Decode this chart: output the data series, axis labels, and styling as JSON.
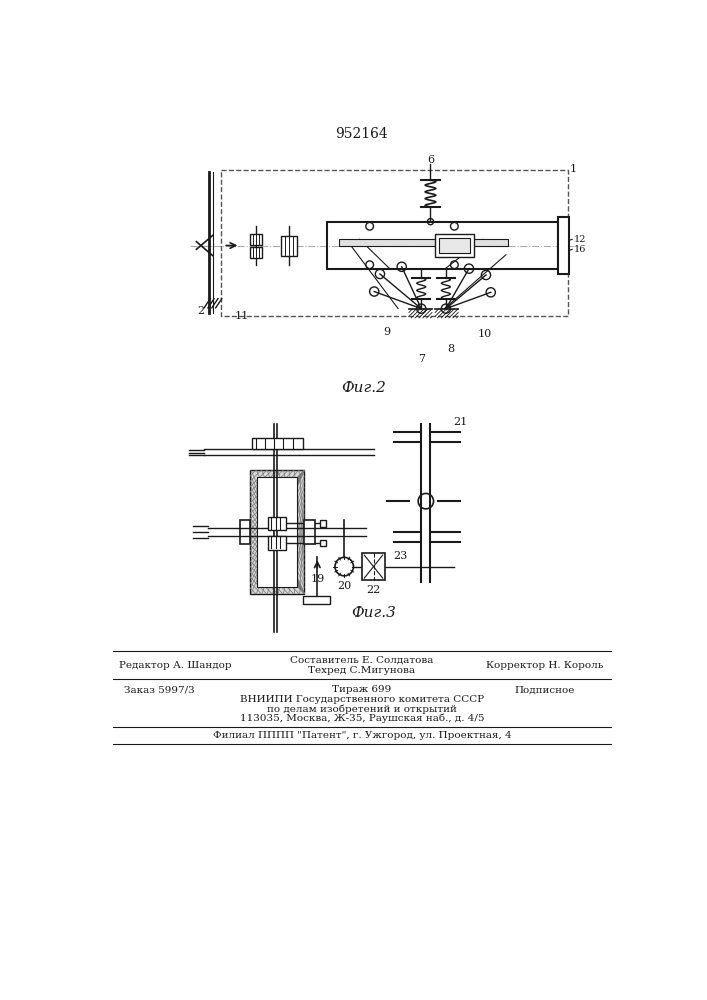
{
  "title_number": "952164",
  "fig2_label": "Фиг.2",
  "fig3_label": "Фиг.3",
  "bg_color": "#ffffff",
  "lc": "#1a1a1a",
  "footer": {
    "left1": "Редактор А. Шандор",
    "center1": "Составитель Е. Солдатова",
    "center2": "Техред С.Мигунова",
    "right1": "Корректор Н. Король",
    "left2": "Заказ 5997/3",
    "center3": "Тираж 699",
    "right2": "Подписное",
    "line3": "ВНИИПИ Государственного комитета СССР",
    "line4": "по делам изобретений и открытий",
    "line5": "113035, Москва, Ж-35, Раушская наб., д. 4/5",
    "line6": "Филиал ПППП \"Патент\", г. Ужгород, ул. Проектная, 4"
  }
}
